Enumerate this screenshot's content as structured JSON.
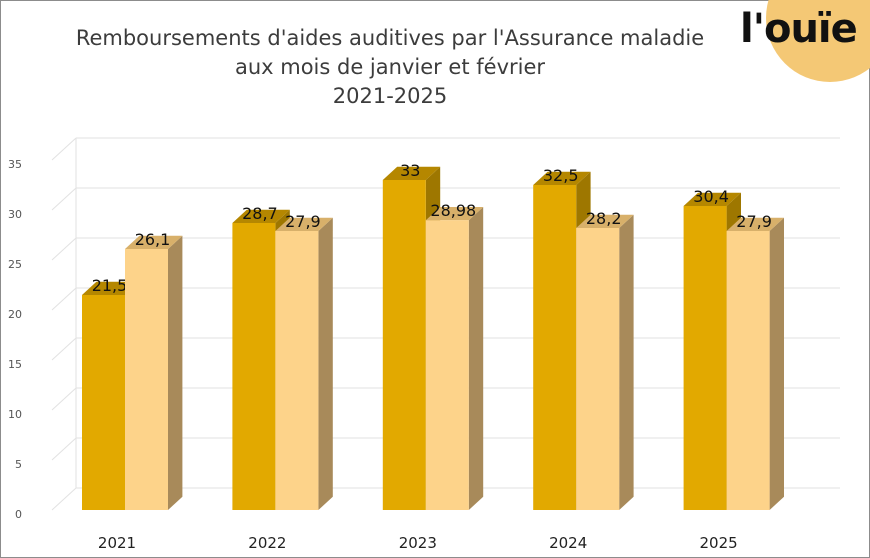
{
  "title_lines": [
    "Remboursements d'aides auditives par l'Assurance maladie",
    "aux mois de janvier et février",
    "2021-2025"
  ],
  "logo": {
    "text": "l'ouïe",
    "color": "#f4c875",
    "name": "l'ouïe"
  },
  "colors": {
    "series1_front": "#e2a900",
    "series1_top": "#b58700",
    "series1_side": "#9e7700",
    "series2_front": "#fdd38a",
    "series2_top": "#d8b06a",
    "series2_side": "#a88a5a"
  },
  "chart_data": {
    "type": "bar",
    "title": "Remboursements d'aides auditives par l'Assurance maladie aux mois de janvier et février 2021-2025",
    "categories": [
      "2021",
      "2022",
      "2023",
      "2024",
      "2025"
    ],
    "series": [
      {
        "values": [
          21.5,
          28.7,
          33,
          32.5,
          30.4
        ],
        "labels": [
          "21,5",
          "28,7",
          "33",
          "32,5",
          "30,4"
        ]
      },
      {
        "values": [
          26.1,
          27.9,
          28.98,
          28.2,
          27.9
        ],
        "labels": [
          "26,1",
          "27,9",
          "28,98",
          "28,2",
          "27,9"
        ]
      }
    ],
    "ylim": [
      0,
      35
    ],
    "yticks": [
      0,
      5,
      10,
      15,
      20,
      25,
      30,
      35
    ],
    "grid": true,
    "legend": "none",
    "style": "3d clustered columns"
  }
}
